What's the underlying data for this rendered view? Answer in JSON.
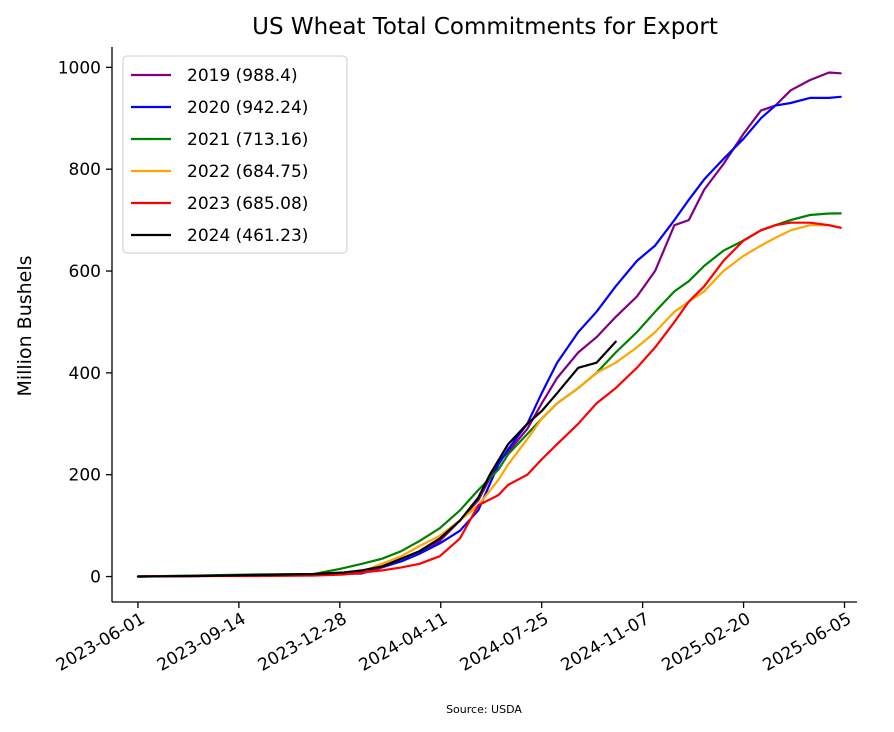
{
  "chart_data": {
    "type": "line",
    "title": "US Wheat Total Commitments for Export",
    "xlabel": "",
    "ylabel": "Million Bushels",
    "source": "Source: USDA",
    "ylim": [
      -50,
      1040
    ],
    "xlim": [
      "2023-05-05",
      "2025-06-18"
    ],
    "yticks": [
      0,
      200,
      400,
      600,
      800,
      1000
    ],
    "xticks": [
      "2023-06-01",
      "2023-09-14",
      "2023-12-28",
      "2024-04-11",
      "2024-07-25",
      "2024-11-07",
      "2025-02-20",
      "2025-06-05"
    ],
    "grid": false,
    "legend_position": "top-left",
    "series": [
      {
        "name": "2019 (988.4)",
        "color": "#800080",
        "x": [
          "2023-06-01",
          "2023-08-01",
          "2023-10-01",
          "2023-12-01",
          "2024-01-01",
          "2024-01-20",
          "2024-02-10",
          "2024-03-01",
          "2024-03-20",
          "2024-04-10",
          "2024-05-01",
          "2024-05-20",
          "2024-06-10",
          "2024-06-20",
          "2024-07-10",
          "2024-07-25",
          "2024-08-10",
          "2024-09-01",
          "2024-09-20",
          "2024-10-10",
          "2024-11-01",
          "2024-11-20",
          "2024-12-10",
          "2024-12-25",
          "2025-01-10",
          "2025-01-30",
          "2025-02-20",
          "2025-03-10",
          "2025-03-25",
          "2025-04-10",
          "2025-04-30",
          "2025-05-20",
          "2025-06-01"
        ],
        "y": [
          0,
          1,
          2,
          3,
          5,
          6,
          18,
          30,
          45,
          70,
          110,
          150,
          225,
          245,
          290,
          340,
          390,
          440,
          470,
          510,
          550,
          600,
          690,
          700,
          760,
          810,
          870,
          915,
          925,
          955,
          975,
          990,
          988.4
        ]
      },
      {
        "name": "2020 (942.24)",
        "color": "#0000ff",
        "x": [
          "2023-06-01",
          "2023-08-01",
          "2023-10-01",
          "2023-12-01",
          "2024-01-01",
          "2024-01-20",
          "2024-02-10",
          "2024-03-01",
          "2024-03-20",
          "2024-04-10",
          "2024-05-01",
          "2024-05-20",
          "2024-06-10",
          "2024-06-20",
          "2024-07-10",
          "2024-07-25",
          "2024-08-10",
          "2024-09-01",
          "2024-09-20",
          "2024-10-10",
          "2024-11-01",
          "2024-11-20",
          "2024-12-10",
          "2024-12-25",
          "2025-01-10",
          "2025-01-30",
          "2025-02-20",
          "2025-03-10",
          "2025-03-25",
          "2025-04-10",
          "2025-04-30",
          "2025-05-20",
          "2025-06-01"
        ],
        "y": [
          0,
          1,
          2,
          4,
          6,
          12,
          20,
          30,
          45,
          65,
          90,
          130,
          220,
          250,
          300,
          360,
          420,
          480,
          520,
          570,
          620,
          650,
          700,
          740,
          780,
          820,
          860,
          900,
          925,
          930,
          940,
          940,
          942.24
        ]
      },
      {
        "name": "2021 (713.16)",
        "color": "#008000",
        "x": [
          "2023-06-01",
          "2023-08-01",
          "2023-10-01",
          "2023-12-01",
          "2023-12-28",
          "2024-01-20",
          "2024-02-10",
          "2024-03-01",
          "2024-03-20",
          "2024-04-10",
          "2024-05-01",
          "2024-05-20",
          "2024-06-10",
          "2024-06-20",
          "2024-07-10",
          "2024-07-25",
          "2024-08-10",
          "2024-09-01",
          "2024-09-20",
          "2024-10-10",
          "2024-11-01",
          "2024-11-20",
          "2024-12-10",
          "2024-12-25",
          "2025-01-10",
          "2025-01-30",
          "2025-02-20",
          "2025-03-10",
          "2025-03-25",
          "2025-04-10",
          "2025-04-30",
          "2025-05-20",
          "2025-06-01"
        ],
        "y": [
          0,
          2,
          4,
          5,
          15,
          25,
          35,
          50,
          70,
          95,
          130,
          170,
          210,
          240,
          280,
          310,
          340,
          370,
          400,
          440,
          480,
          520,
          560,
          580,
          610,
          640,
          660,
          680,
          690,
          700,
          710,
          713,
          713.16
        ]
      },
      {
        "name": "2022 (684.75)",
        "color": "#ffa500",
        "x": [
          "2023-06-01",
          "2023-08-01",
          "2023-10-01",
          "2023-12-01",
          "2024-01-01",
          "2024-01-20",
          "2024-02-10",
          "2024-03-01",
          "2024-03-20",
          "2024-04-10",
          "2024-05-01",
          "2024-05-20",
          "2024-06-10",
          "2024-06-20",
          "2024-07-10",
          "2024-07-25",
          "2024-08-10",
          "2024-09-01",
          "2024-09-20",
          "2024-10-10",
          "2024-11-01",
          "2024-11-20",
          "2024-12-10",
          "2024-12-25",
          "2025-01-10",
          "2025-01-30",
          "2025-02-20",
          "2025-03-10",
          "2025-03-25",
          "2025-04-10",
          "2025-04-30",
          "2025-05-20",
          "2025-06-01"
        ],
        "y": [
          0,
          1,
          2,
          3,
          5,
          10,
          25,
          40,
          60,
          80,
          110,
          140,
          190,
          220,
          270,
          310,
          340,
          370,
          400,
          420,
          450,
          480,
          520,
          540,
          560,
          600,
          630,
          650,
          665,
          680,
          690,
          690,
          684.75
        ]
      },
      {
        "name": "2023 (685.08)",
        "color": "#ff0000",
        "x": [
          "2023-06-01",
          "2023-08-01",
          "2023-10-01",
          "2023-12-01",
          "2024-01-01",
          "2024-01-20",
          "2024-02-10",
          "2024-03-01",
          "2024-03-20",
          "2024-04-10",
          "2024-05-01",
          "2024-05-20",
          "2024-06-10",
          "2024-06-20",
          "2024-07-10",
          "2024-07-25",
          "2024-08-10",
          "2024-09-01",
          "2024-09-20",
          "2024-10-10",
          "2024-11-01",
          "2024-11-20",
          "2024-12-10",
          "2024-12-25",
          "2025-01-10",
          "2025-01-30",
          "2025-02-20",
          "2025-03-10",
          "2025-03-25",
          "2025-04-10",
          "2025-04-30",
          "2025-05-20",
          "2025-06-01"
        ],
        "y": [
          0,
          1,
          1,
          2,
          4,
          8,
          12,
          18,
          25,
          40,
          75,
          140,
          160,
          180,
          200,
          230,
          260,
          300,
          340,
          370,
          410,
          450,
          500,
          540,
          570,
          620,
          660,
          680,
          690,
          695,
          695,
          690,
          685.08
        ]
      },
      {
        "name": "2024 (461.23)",
        "color": "#000000",
        "x": [
          "2023-06-01",
          "2023-08-01",
          "2023-10-01",
          "2023-12-01",
          "2024-01-01",
          "2024-01-20",
          "2024-02-10",
          "2024-03-01",
          "2024-03-20",
          "2024-04-10",
          "2024-05-01",
          "2024-05-20",
          "2024-06-01",
          "2024-06-20",
          "2024-07-10",
          "2024-07-25",
          "2024-08-10",
          "2024-09-01",
          "2024-09-20",
          "2024-10-10"
        ],
        "y": [
          0,
          1,
          3,
          5,
          8,
          12,
          20,
          35,
          50,
          75,
          110,
          155,
          200,
          260,
          300,
          325,
          360,
          410,
          420,
          461.23
        ]
      }
    ]
  }
}
